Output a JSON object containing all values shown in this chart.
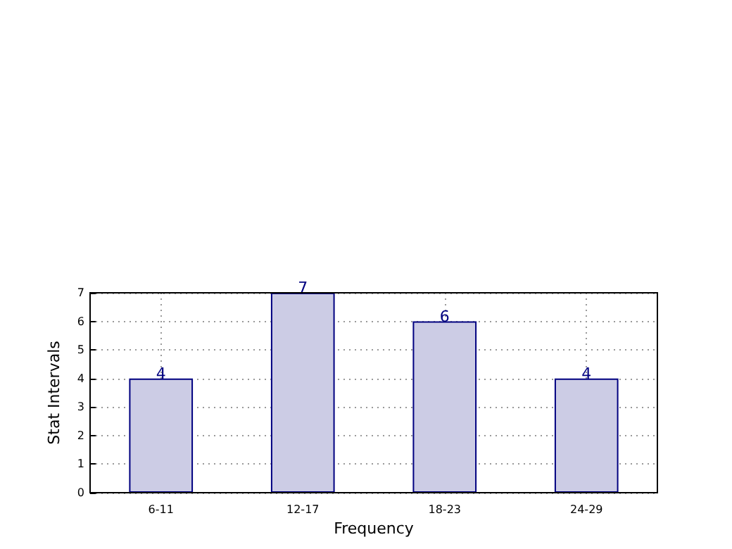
{
  "chart_data": {
    "type": "bar",
    "xlabel": "Frequency",
    "ylabel": "Stat Intervals",
    "categories": [
      "6-11",
      "12-17",
      "18-23",
      "24-29"
    ],
    "values": [
      4,
      7,
      6,
      4
    ],
    "color": "#cccce5",
    "ylim": [
      0,
      7
    ],
    "yticks": [
      0,
      1,
      2,
      3,
      4,
      5,
      6,
      7
    ],
    "grid": true,
    "data_labels": true
  }
}
